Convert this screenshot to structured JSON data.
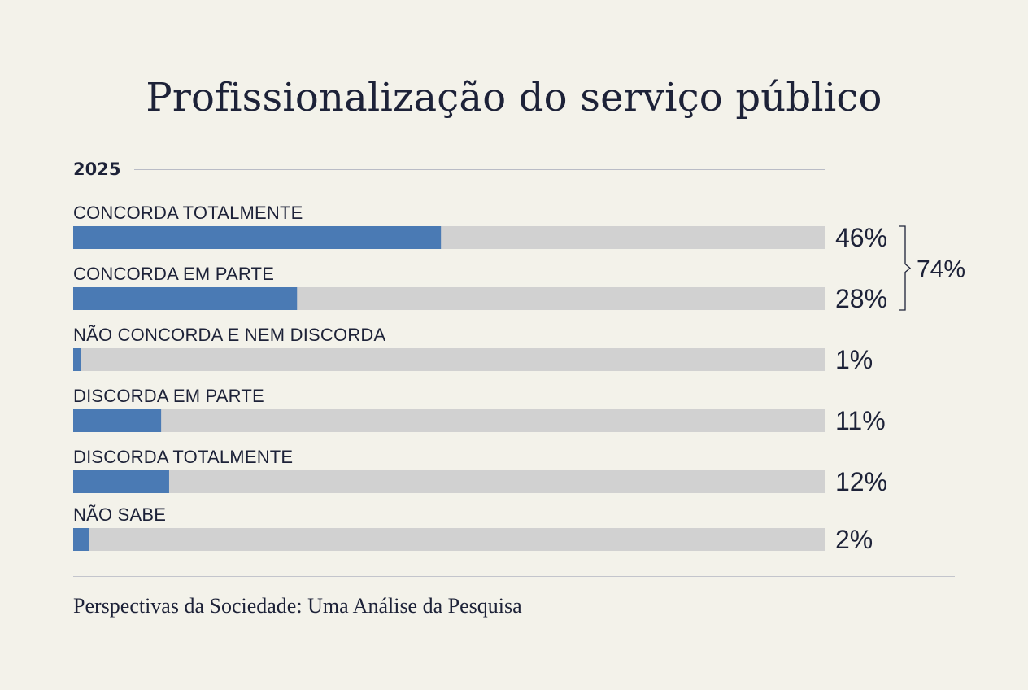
{
  "chart_data": {
    "type": "bar",
    "orientation": "horizontal",
    "title": "Profissionalização do serviço público",
    "subtitle": "2025",
    "categories": [
      "CONCORDA TOTALMENTE",
      "CONCORDA EM PARTE",
      "NÃO CONCORDA E NEM DISCORDA",
      "DISCORDA EM PARTE",
      "DISCORDA TOTALMENTE",
      "NÃO SABE"
    ],
    "values": [
      46,
      28,
      1,
      11,
      12,
      2
    ],
    "value_labels": [
      "46%",
      "28%",
      "1%",
      "11%",
      "12%",
      "2%"
    ],
    "xlim": [
      0,
      94
    ],
    "grid": false,
    "legend": "none",
    "annotations": [
      {
        "type": "bracket",
        "categories": [
          "CONCORDA TOTALMENTE",
          "CONCORDA EM PARTE"
        ],
        "label": "74%"
      }
    ],
    "colors": {
      "bar": "#4a7ab4",
      "track": "#d1d1d1",
      "background": "#f3f2ea",
      "text": "#1d2238"
    }
  },
  "footer": "Perspectivas da Sociedade: Uma Análise da Pesquisa"
}
